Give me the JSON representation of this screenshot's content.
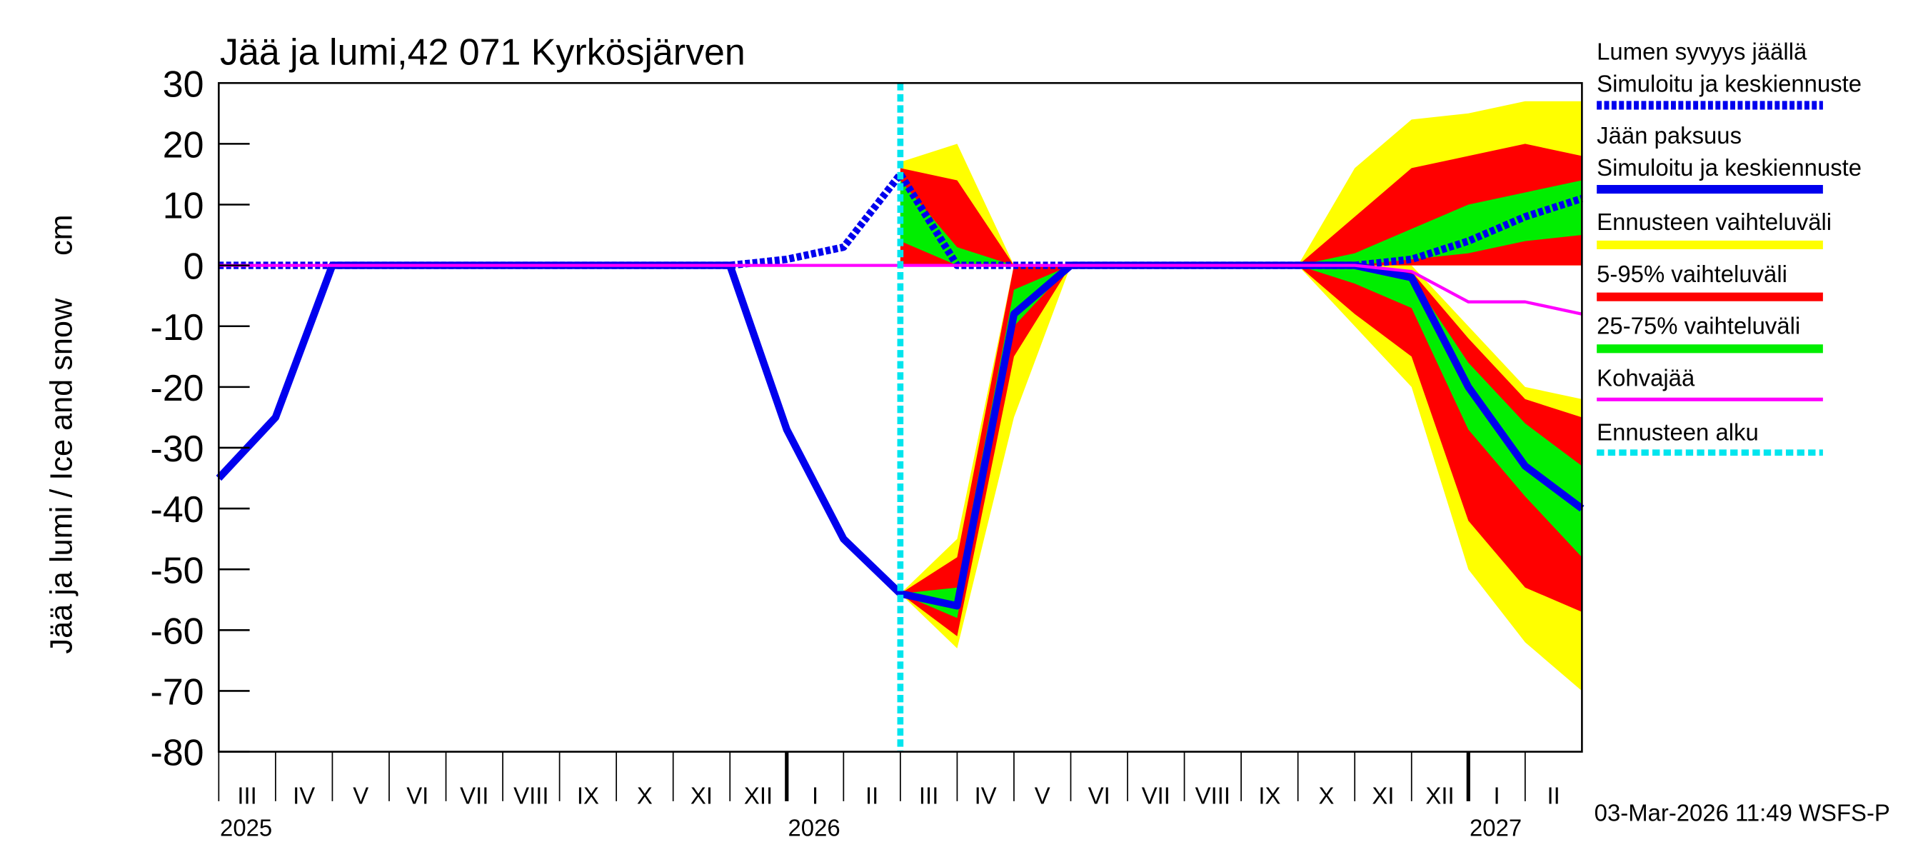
{
  "chart_data": {
    "type": "ice-snow",
    "title": "Jää ja lumi,42 071 Kyrkösjärven",
    "y_label": "Jää ja lumi / Ice and snow",
    "y_unit": "cm",
    "footer": "03-Mar-2026 11:49 WSFS-P",
    "x": [
      "2025-03",
      "2025-04",
      "2025-05",
      "2025-06",
      "2025-07",
      "2025-08",
      "2025-09",
      "2025-10",
      "2025-11",
      "2025-12",
      "2026-01",
      "2026-02",
      "2026-03",
      "2026-04",
      "2026-05",
      "2026-06",
      "2026-07",
      "2026-08",
      "2026-09",
      "2026-10",
      "2026-11",
      "2026-12",
      "2027-01",
      "2027-02",
      "2027-03"
    ],
    "xtick_labels": [
      "III",
      "IV",
      "V",
      "VI",
      "VII",
      "VIII",
      "IX",
      "X",
      "XI",
      "XII",
      "I",
      "II",
      "III",
      "IV",
      "V",
      "VI",
      "VII",
      "VIII",
      "IX",
      "X",
      "XI",
      "XII",
      "I",
      "II"
    ],
    "year_labels": [
      "2025",
      "2026",
      "2027"
    ],
    "ylim": [
      -80,
      30
    ],
    "yticks": [
      30,
      20,
      10,
      0,
      -10,
      -20,
      -30,
      -40,
      -50,
      -60,
      -70,
      -80
    ],
    "forecast_start": "2026-03",
    "forecast_label": "Ennusteen alku",
    "forecast_color": "#00e5ee",
    "bands": [
      {
        "name": "Ennusteen vaihteluväli",
        "color": "#ffff00",
        "ice_low": [
          null,
          null,
          null,
          null,
          null,
          null,
          null,
          null,
          null,
          null,
          null,
          null,
          -54,
          -63,
          -25,
          0,
          0,
          0,
          0,
          0,
          -10,
          -20,
          -50,
          -62,
          -70
        ],
        "ice_high": [
          null,
          null,
          null,
          null,
          null,
          null,
          null,
          null,
          null,
          null,
          null,
          null,
          -54,
          -45,
          0,
          0,
          0,
          0,
          0,
          0,
          0,
          0,
          -10,
          -20,
          -22
        ],
        "snow_low": [
          null,
          null,
          null,
          null,
          null,
          null,
          null,
          null,
          null,
          null,
          null,
          null,
          0,
          0,
          0,
          0,
          0,
          0,
          0,
          0,
          0,
          0,
          0,
          0,
          0
        ],
        "snow_high": [
          null,
          null,
          null,
          null,
          null,
          null,
          null,
          null,
          null,
          null,
          null,
          null,
          17,
          20,
          0,
          0,
          0,
          0,
          0,
          0,
          16,
          24,
          25,
          27,
          27
        ]
      },
      {
        "name": "5-95% vaihteluväli",
        "color": "#ff0000",
        "ice_low": [
          null,
          null,
          null,
          null,
          null,
          null,
          null,
          null,
          null,
          null,
          null,
          null,
          -54,
          -61,
          -15,
          0,
          0,
          0,
          0,
          0,
          -8,
          -15,
          -42,
          -53,
          -57
        ],
        "ice_high": [
          null,
          null,
          null,
          null,
          null,
          null,
          null,
          null,
          null,
          null,
          null,
          null,
          -54,
          -48,
          0,
          0,
          0,
          0,
          0,
          0,
          0,
          -1,
          -12,
          -22,
          -25
        ],
        "snow_low": [
          null,
          null,
          null,
          null,
          null,
          null,
          null,
          null,
          null,
          null,
          null,
          null,
          0,
          0,
          0,
          0,
          0,
          0,
          0,
          0,
          0,
          0,
          0,
          0,
          0
        ],
        "snow_high": [
          null,
          null,
          null,
          null,
          null,
          null,
          null,
          null,
          null,
          null,
          null,
          null,
          16,
          14,
          0,
          0,
          0,
          0,
          0,
          0,
          8,
          16,
          18,
          20,
          18
        ]
      },
      {
        "name": "25-75% vaihteluväli",
        "color": "#00ee00",
        "ice_low": [
          null,
          null,
          null,
          null,
          null,
          null,
          null,
          null,
          null,
          null,
          null,
          null,
          -54,
          -58,
          -10,
          0,
          0,
          0,
          0,
          0,
          -3,
          -7,
          -27,
          -38,
          -48
        ],
        "ice_high": [
          null,
          null,
          null,
          null,
          null,
          null,
          null,
          null,
          null,
          null,
          null,
          null,
          -54,
          -53,
          -4,
          0,
          0,
          0,
          0,
          0,
          0,
          -2,
          -16,
          -26,
          -33
        ],
        "snow_low": [
          null,
          null,
          null,
          null,
          null,
          null,
          null,
          null,
          null,
          null,
          null,
          null,
          4,
          0,
          0,
          0,
          0,
          0,
          0,
          0,
          0,
          1,
          2,
          4,
          5
        ],
        "snow_high": [
          null,
          null,
          null,
          null,
          null,
          null,
          null,
          null,
          null,
          null,
          null,
          null,
          14,
          3,
          0,
          0,
          0,
          0,
          0,
          0,
          2,
          6,
          10,
          12,
          14
        ]
      }
    ],
    "series": [
      {
        "group": "Lumen syvyys jäällä",
        "name": "Simuloitu ja keskiennuste",
        "color": "#0000ee",
        "dashed": true,
        "values": [
          0,
          0,
          0,
          0,
          0,
          0,
          0,
          0,
          0,
          0,
          1,
          3,
          15,
          0,
          0,
          0,
          0,
          0,
          0,
          0,
          0,
          1,
          4,
          8,
          11
        ]
      },
      {
        "group": "Jään paksuus",
        "name": "Simuloitu ja keskiennuste",
        "color": "#0000ee",
        "dashed": false,
        "values": [
          -35,
          -25,
          0,
          0,
          0,
          0,
          0,
          0,
          0,
          0,
          -27,
          -45,
          -54,
          -56,
          -8,
          0,
          0,
          0,
          0,
          0,
          0,
          -2,
          -20,
          -33,
          -40
        ]
      },
      {
        "name": "Kohvajää",
        "color": "#ff00ff",
        "dashed": false,
        "values": [
          0,
          0,
          0,
          0,
          0,
          0,
          0,
          0,
          0,
          0,
          0,
          0,
          0,
          0,
          0,
          0,
          0,
          0,
          0,
          0,
          0,
          -1,
          -6,
          -6,
          -8
        ]
      }
    ]
  }
}
